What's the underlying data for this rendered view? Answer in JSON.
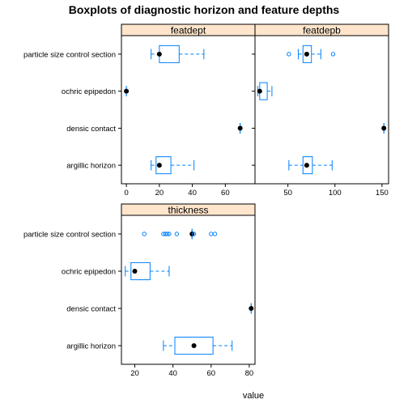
{
  "colors": {
    "box": "#0080ff",
    "strip_fill": "#ffe5cc",
    "median": "#000000",
    "frame": "#000000"
  },
  "chart_data": {
    "type": "box",
    "title": "Boxplots of diagnostic horizon and feature depths",
    "xlabel": "value",
    "ylabel": "",
    "categories": [
      "particle size control section",
      "ochric epipedon",
      "densic contact",
      "argillic horizon"
    ],
    "panels": [
      {
        "name": "featdept",
        "xlim": [
          -3,
          78
        ],
        "ticks": [
          0,
          20,
          40,
          60
        ],
        "ticks_side": "bottom",
        "boxes": [
          {
            "category": "particle size control section",
            "whisker_low": 15,
            "q1": 20,
            "median": 20,
            "q3": 32,
            "whisker_high": 47,
            "outliers": []
          },
          {
            "category": "ochric epipedon",
            "whisker_low": 0,
            "q1": 0,
            "median": 0,
            "q3": 0,
            "whisker_high": 0,
            "outliers": []
          },
          {
            "category": "densic contact",
            "whisker_low": 69,
            "q1": 69,
            "median": 69,
            "q3": 69,
            "whisker_high": 69,
            "outliers": []
          },
          {
            "category": "argillic horizon",
            "whisker_low": 15,
            "q1": 18,
            "median": 20,
            "q3": 27,
            "whisker_high": 41,
            "outliers": []
          }
        ]
      },
      {
        "name": "featdepb",
        "xlim": [
          15,
          157
        ],
        "ticks": [
          50,
          100,
          150
        ],
        "ticks_side": "bottom",
        "boxes": [
          {
            "category": "particle size control section",
            "whisker_low": 61,
            "q1": 66,
            "median": 70,
            "q3": 75,
            "whisker_high": 85,
            "outliers": [
              51,
              98
            ]
          },
          {
            "category": "ochric epipedon",
            "whisker_low": 18,
            "q1": 20,
            "median": 20,
            "q3": 28,
            "whisker_high": 33,
            "outliers": []
          },
          {
            "category": "densic contact",
            "whisker_low": 152,
            "q1": 152,
            "median": 152,
            "q3": 152,
            "whisker_high": 152,
            "outliers": []
          },
          {
            "category": "argillic horizon",
            "whisker_low": 51,
            "q1": 66,
            "median": 70,
            "q3": 76,
            "whisker_high": 97,
            "outliers": []
          }
        ]
      },
      {
        "name": "thickness",
        "xlim": [
          13,
          83
        ],
        "ticks": [
          20,
          40,
          60,
          80
        ],
        "ticks_side": "bottom",
        "boxes": [
          {
            "category": "particle size control section",
            "whisker_low": 50,
            "q1": 50,
            "median": 50,
            "q3": 50,
            "whisker_high": 50,
            "outliers": [
              25,
              35,
              36,
              37,
              38,
              42,
              51,
              60,
              62
            ]
          },
          {
            "category": "ochric epipedon",
            "whisker_low": 15,
            "q1": 18,
            "median": 20,
            "q3": 28,
            "whisker_high": 38,
            "outliers": []
          },
          {
            "category": "densic contact",
            "whisker_low": 81,
            "q1": 81,
            "median": 81,
            "q3": 81,
            "whisker_high": 81,
            "outliers": []
          },
          {
            "category": "argillic horizon",
            "whisker_low": 35,
            "q1": 41,
            "median": 51,
            "q3": 61,
            "whisker_high": 71,
            "outliers": []
          }
        ]
      }
    ]
  }
}
